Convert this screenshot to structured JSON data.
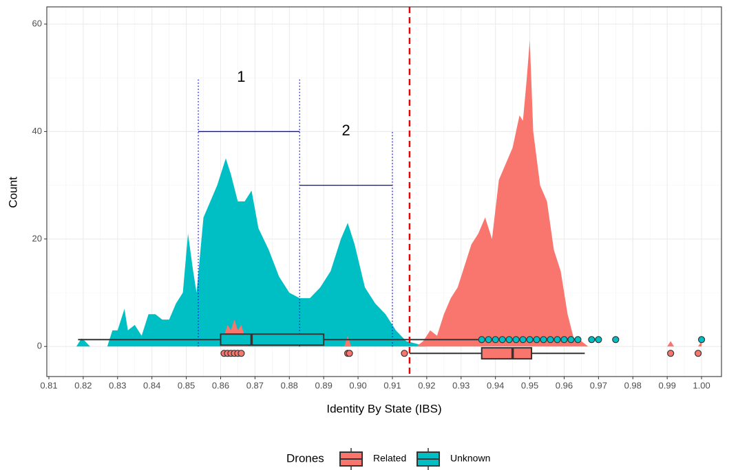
{
  "chart_data": {
    "type": "area-box",
    "x_label": "Identity By State (IBS)",
    "y_label": "Count",
    "legend_title": "Drones",
    "legend": "bottom",
    "grid": true,
    "xlim": [
      0.8094,
      1.0058
    ],
    "ylim": [
      -5.6,
      63.2
    ],
    "xticks": [
      0.81,
      0.82,
      0.83,
      0.84,
      0.85,
      0.86,
      0.87,
      0.88,
      0.89,
      {
        "value": 0.9,
        "label": "0.90"
      },
      0.91,
      0.92,
      0.93,
      0.94,
      0.95,
      0.96,
      0.97,
      0.98,
      0.99,
      {
        "value": 1,
        "label": "1.00"
      }
    ],
    "yticks": [
      0,
      20,
      40,
      60
    ],
    "series": [
      {
        "name": "Related",
        "color": "#F8766D",
        "x": [
          0.86,
          0.862,
          0.863,
          0.864,
          0.865,
          0.866,
          0.868,
          0.88,
          0.896,
          0.897,
          0.898,
          0.905,
          0.917,
          0.919,
          0.921,
          0.923,
          0.925,
          0.927,
          0.929,
          0.931,
          0.933,
          0.935,
          0.937,
          0.939,
          0.941,
          0.943,
          0.945,
          0.947,
          0.948,
          0.949,
          0.95,
          0.951,
          0.953,
          0.955,
          0.957,
          0.959,
          0.961,
          0.963,
          0.965,
          0.967,
          0.98,
          0.99,
          0.991,
          0.992,
          0.995,
          0.999,
          1.0
        ],
        "values": [
          0,
          4,
          3,
          5,
          3,
          4,
          0,
          null,
          0,
          2,
          0,
          null,
          0,
          1,
          3,
          2,
          6,
          9,
          11,
          15,
          19,
          21,
          24,
          20,
          31,
          34,
          37,
          43,
          42,
          49,
          57,
          40,
          30,
          27,
          18,
          14,
          6,
          1,
          1,
          0,
          null,
          0,
          1,
          0,
          null,
          0,
          1
        ],
        "box": {
          "whisker_low": 0.915,
          "q1": 0.936,
          "median": 0.945,
          "q3": 0.9505,
          "whisker_high": 0.966,
          "outliers": [
            0.861,
            0.862,
            0.863,
            0.864,
            0.865,
            0.866,
            0.897,
            0.8975,
            0.9135,
            0.991,
            0.999
          ]
        }
      },
      {
        "name": "Unknown",
        "color": "#00BFC4",
        "x": [
          0.818,
          0.8195,
          0.8205,
          0.822,
          0.827,
          0.8285,
          0.83,
          0.832,
          0.833,
          0.835,
          0.837,
          0.839,
          0.841,
          0.843,
          0.845,
          0.847,
          0.849,
          0.8505,
          0.852,
          0.853,
          0.855,
          0.857,
          0.859,
          0.8615,
          0.863,
          0.865,
          0.867,
          0.869,
          0.871,
          0.874,
          0.877,
          0.88,
          0.883,
          0.886,
          0.889,
          0.892,
          0.895,
          0.897,
          0.899,
          0.902,
          0.905,
          0.908,
          0.911,
          0.914,
          0.917,
          0.92
        ],
        "values": [
          0,
          1.5,
          1,
          0,
          0,
          3,
          3,
          7,
          3,
          4,
          2,
          6,
          6,
          5,
          5,
          8,
          10,
          21,
          14,
          10,
          24,
          27,
          30,
          35,
          32,
          27,
          27,
          29,
          22,
          18,
          13,
          10,
          9,
          9,
          11,
          14,
          20,
          23,
          19,
          11,
          8,
          6,
          3,
          1,
          0.5,
          0
        ],
        "box": {
          "whisker_low": 0.8185,
          "q1": 0.86,
          "median": 0.869,
          "q3": 0.89,
          "whisker_high": 0.935,
          "outliers": [
            0.936,
            0.938,
            0.94,
            0.942,
            0.944,
            0.946,
            0.948,
            0.95,
            0.952,
            0.954,
            0.956,
            0.958,
            0.96,
            0.962,
            0.964,
            0.968,
            0.97,
            0.975,
            1.0
          ]
        }
      }
    ],
    "annotations": {
      "segments": [
        {
          "x": [
            0.8535,
            0.8535
          ],
          "y": [
            0,
            50
          ]
        },
        {
          "x": [
            0.883,
            0.883
          ],
          "y": [
            0,
            50
          ]
        },
        {
          "x": [
            0.91,
            0.91
          ],
          "y": [
            0,
            40
          ]
        },
        {
          "x": [
            0.8535,
            0.883
          ],
          "y": [
            40,
            40
          ]
        },
        {
          "x": [
            0.883,
            0.91
          ],
          "y": [
            30,
            30
          ]
        }
      ],
      "labels": [
        {
          "text": "1",
          "x": 0.866,
          "y": 50
        },
        {
          "text": "2",
          "x": 0.8965,
          "y": 40
        }
      ],
      "threshold": 0.915
    }
  }
}
